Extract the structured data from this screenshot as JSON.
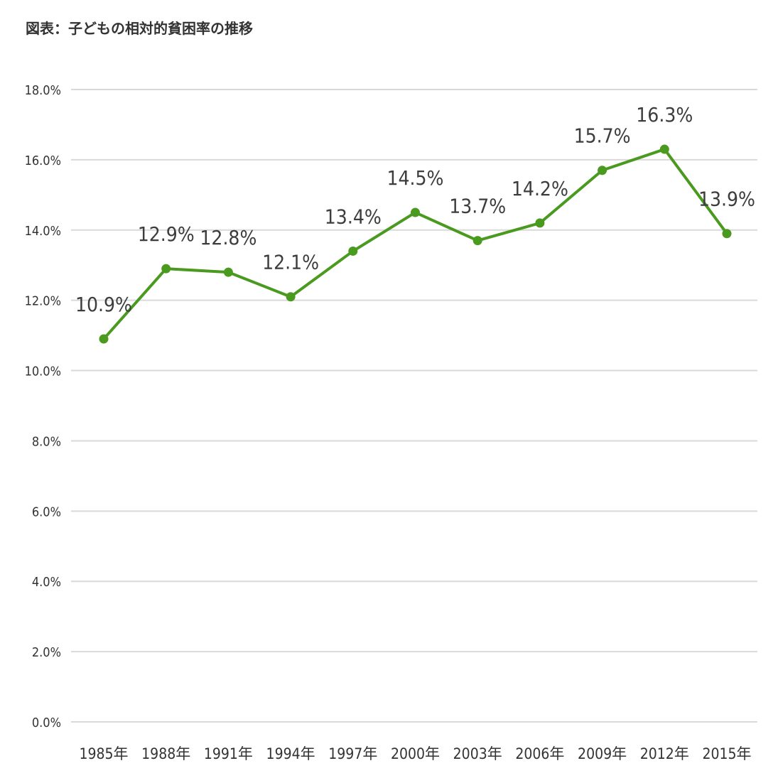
{
  "chart_data": {
    "type": "line",
    "title": "図表：子どもの相対的貧困率の推移",
    "categories": [
      "1985年",
      "1988年",
      "1991年",
      "1994年",
      "1997年",
      "2000年",
      "2003年",
      "2006年",
      "2009年",
      "2012年",
      "2015年"
    ],
    "series": [
      {
        "values": [
          10.9,
          12.9,
          12.8,
          12.1,
          13.4,
          14.5,
          13.7,
          14.2,
          15.7,
          16.3,
          13.9
        ],
        "data_labels": [
          "10.9%",
          "12.9%",
          "12.8%",
          "12.1%",
          "13.4%",
          "14.5%",
          "13.7%",
          "14.2%",
          "15.7%",
          "16.3%",
          "13.9%"
        ],
        "color": "#4a9a1f"
      }
    ],
    "ylim": [
      0,
      18
    ],
    "y_ticks": [
      "0.0%",
      "2.0%",
      "4.0%",
      "6.0%",
      "8.0%",
      "10.0%",
      "12.0%",
      "14.0%",
      "16.0%",
      "18.0%"
    ],
    "xlabel": "",
    "ylabel": "",
    "grid": true,
    "gridline_color": "#d9d9d9",
    "legend": "none"
  }
}
